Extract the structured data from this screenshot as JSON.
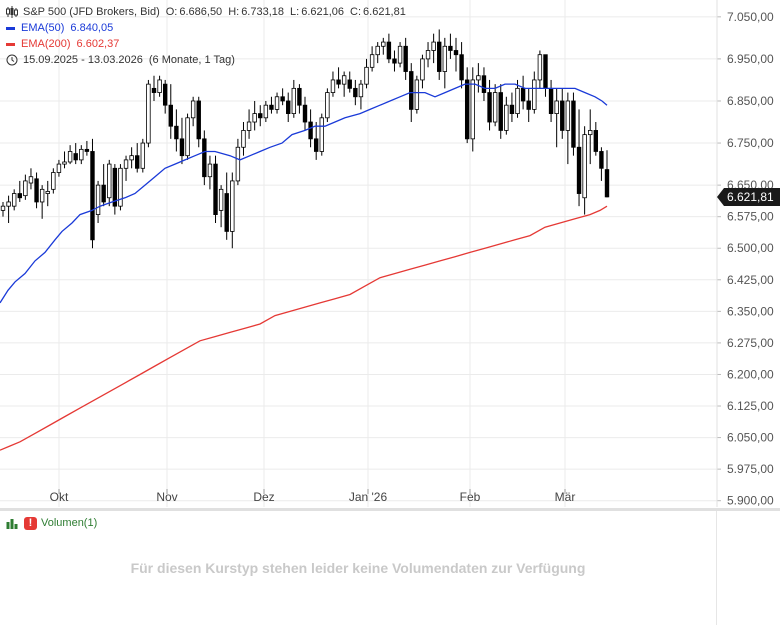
{
  "legend": {
    "instrument": "S&P 500 (JFD Brokers, Bid)",
    "open_label": "O:",
    "open": "6.686,50",
    "high_label": "H:",
    "high": "6.733,18",
    "low_label": "L:",
    "low": "6.621,06",
    "close_label": "C:",
    "close": "6.621,81",
    "ema50_label": "EMA(50)",
    "ema50_value": "6.840,05",
    "ema200_label": "EMA(200)",
    "ema200_value": "6.602,37",
    "range": "15.09.2025 - 13.03.2026",
    "period": "(6 Monate, 1 Tag)"
  },
  "volume": {
    "label": "Volumen(1)",
    "message": "Für diesen Kurstyp stehen leider keine Volumendaten zur Verfügung"
  },
  "colors": {
    "ema50": "#1a3ad8",
    "ema200": "#e53935",
    "candle": "#000000",
    "grid": "#ebebeb",
    "last_price_tag": "#1a1a1a"
  },
  "chart_data": {
    "type": "candlestick",
    "title": "S&P 500 (JFD Brokers, Bid)",
    "x_tick_labels": [
      "Okt",
      "Nov",
      "Dez",
      "Jan '26",
      "Feb",
      "Mär"
    ],
    "y_tick_labels": [
      "7.050,00",
      "6.950,00",
      "6.850,00",
      "6.750,00",
      "6.650,00",
      "6.575,00",
      "6.500,00",
      "6.425,00",
      "6.350,00",
      "6.275,00",
      "6.200,00",
      "6.125,00",
      "6.050,00",
      "5.975,00",
      "5.900,00"
    ],
    "y_ticks": [
      7050,
      6950,
      6850,
      6750,
      6650,
      6575,
      6500,
      6425,
      6350,
      6275,
      6200,
      6125,
      6050,
      5975,
      5900
    ],
    "ylim": [
      5885,
      7090
    ],
    "last_price": 6621.81,
    "last_price_label": "6.621,81",
    "grid": true,
    "candles": [
      {
        "o": 6590,
        "h": 6610,
        "l": 6575,
        "c": 6600
      },
      {
        "o": 6600,
        "h": 6625,
        "l": 6560,
        "c": 6610
      },
      {
        "o": 6600,
        "h": 6640,
        "l": 6590,
        "c": 6630
      },
      {
        "o": 6630,
        "h": 6660,
        "l": 6610,
        "c": 6620
      },
      {
        "o": 6625,
        "h": 6675,
        "l": 6615,
        "c": 6660
      },
      {
        "o": 6655,
        "h": 6690,
        "l": 6640,
        "c": 6670
      },
      {
        "o": 6665,
        "h": 6680,
        "l": 6595,
        "c": 6610
      },
      {
        "o": 6610,
        "h": 6650,
        "l": 6570,
        "c": 6640
      },
      {
        "o": 6630,
        "h": 6660,
        "l": 6600,
        "c": 6635
      },
      {
        "o": 6640,
        "h": 6690,
        "l": 6630,
        "c": 6680
      },
      {
        "o": 6680,
        "h": 6710,
        "l": 6670,
        "c": 6700
      },
      {
        "o": 6700,
        "h": 6730,
        "l": 6690,
        "c": 6705
      },
      {
        "o": 6705,
        "h": 6745,
        "l": 6700,
        "c": 6730
      },
      {
        "o": 6725,
        "h": 6750,
        "l": 6700,
        "c": 6710
      },
      {
        "o": 6710,
        "h": 6745,
        "l": 6700,
        "c": 6735
      },
      {
        "o": 6735,
        "h": 6755,
        "l": 6720,
        "c": 6730
      },
      {
        "o": 6730,
        "h": 6760,
        "l": 6500,
        "c": 6520
      },
      {
        "o": 6580,
        "h": 6660,
        "l": 6560,
        "c": 6650
      },
      {
        "o": 6650,
        "h": 6700,
        "l": 6600,
        "c": 6610
      },
      {
        "o": 6620,
        "h": 6710,
        "l": 6600,
        "c": 6700
      },
      {
        "o": 6690,
        "h": 6700,
        "l": 6580,
        "c": 6600
      },
      {
        "o": 6600,
        "h": 6700,
        "l": 6590,
        "c": 6690
      },
      {
        "o": 6690,
        "h": 6720,
        "l": 6660,
        "c": 6710
      },
      {
        "o": 6710,
        "h": 6740,
        "l": 6690,
        "c": 6720
      },
      {
        "o": 6720,
        "h": 6750,
        "l": 6680,
        "c": 6690
      },
      {
        "o": 6690,
        "h": 6760,
        "l": 6680,
        "c": 6750
      },
      {
        "o": 6750,
        "h": 6900,
        "l": 6740,
        "c": 6890
      },
      {
        "o": 6880,
        "h": 6910,
        "l": 6850,
        "c": 6870
      },
      {
        "o": 6870,
        "h": 6910,
        "l": 6860,
        "c": 6900
      },
      {
        "o": 6890,
        "h": 6900,
        "l": 6820,
        "c": 6840
      },
      {
        "o": 6840,
        "h": 6890,
        "l": 6760,
        "c": 6790
      },
      {
        "o": 6790,
        "h": 6830,
        "l": 6730,
        "c": 6760
      },
      {
        "o": 6760,
        "h": 6810,
        "l": 6700,
        "c": 6720
      },
      {
        "o": 6720,
        "h": 6820,
        "l": 6710,
        "c": 6810
      },
      {
        "o": 6810,
        "h": 6860,
        "l": 6790,
        "c": 6850
      },
      {
        "o": 6850,
        "h": 6860,
        "l": 6740,
        "c": 6760
      },
      {
        "o": 6760,
        "h": 6780,
        "l": 6650,
        "c": 6670
      },
      {
        "o": 6670,
        "h": 6720,
        "l": 6640,
        "c": 6700
      },
      {
        "o": 6700,
        "h": 6720,
        "l": 6560,
        "c": 6580
      },
      {
        "o": 6590,
        "h": 6650,
        "l": 6550,
        "c": 6640
      },
      {
        "o": 6630,
        "h": 6680,
        "l": 6520,
        "c": 6540
      },
      {
        "o": 6540,
        "h": 6680,
        "l": 6500,
        "c": 6660
      },
      {
        "o": 6660,
        "h": 6760,
        "l": 6650,
        "c": 6740
      },
      {
        "o": 6740,
        "h": 6800,
        "l": 6720,
        "c": 6780
      },
      {
        "o": 6780,
        "h": 6830,
        "l": 6760,
        "c": 6800
      },
      {
        "o": 6800,
        "h": 6850,
        "l": 6780,
        "c": 6820
      },
      {
        "o": 6820,
        "h": 6840,
        "l": 6790,
        "c": 6810
      },
      {
        "o": 6810,
        "h": 6850,
        "l": 6800,
        "c": 6840
      },
      {
        "o": 6840,
        "h": 6860,
        "l": 6820,
        "c": 6830
      },
      {
        "o": 6830,
        "h": 6870,
        "l": 6820,
        "c": 6860
      },
      {
        "o": 6860,
        "h": 6880,
        "l": 6840,
        "c": 6850
      },
      {
        "o": 6850,
        "h": 6870,
        "l": 6800,
        "c": 6820
      },
      {
        "o": 6820,
        "h": 6900,
        "l": 6810,
        "c": 6880
      },
      {
        "o": 6880,
        "h": 6890,
        "l": 6820,
        "c": 6840
      },
      {
        "o": 6840,
        "h": 6860,
        "l": 6780,
        "c": 6800
      },
      {
        "o": 6800,
        "h": 6830,
        "l": 6740,
        "c": 6760
      },
      {
        "o": 6760,
        "h": 6800,
        "l": 6710,
        "c": 6730
      },
      {
        "o": 6730,
        "h": 6820,
        "l": 6720,
        "c": 6810
      },
      {
        "o": 6810,
        "h": 6880,
        "l": 6800,
        "c": 6870
      },
      {
        "o": 6870,
        "h": 6920,
        "l": 6860,
        "c": 6900
      },
      {
        "o": 6900,
        "h": 6930,
        "l": 6880,
        "c": 6890
      },
      {
        "o": 6890,
        "h": 6920,
        "l": 6860,
        "c": 6910
      },
      {
        "o": 6900,
        "h": 6920,
        "l": 6870,
        "c": 6880
      },
      {
        "o": 6880,
        "h": 6900,
        "l": 6840,
        "c": 6860
      },
      {
        "o": 6860,
        "h": 6900,
        "l": 6830,
        "c": 6890
      },
      {
        "o": 6890,
        "h": 6950,
        "l": 6880,
        "c": 6930
      },
      {
        "o": 6930,
        "h": 6980,
        "l": 6920,
        "c": 6960
      },
      {
        "o": 6960,
        "h": 6990,
        "l": 6940,
        "c": 6980
      },
      {
        "o": 6980,
        "h": 7000,
        "l": 6960,
        "c": 6990
      },
      {
        "o": 6990,
        "h": 7010,
        "l": 6940,
        "c": 6950
      },
      {
        "o": 6950,
        "h": 6970,
        "l": 6920,
        "c": 6940
      },
      {
        "o": 6940,
        "h": 6990,
        "l": 6930,
        "c": 6980
      },
      {
        "o": 6980,
        "h": 7000,
        "l": 6900,
        "c": 6920
      },
      {
        "o": 6920,
        "h": 6940,
        "l": 6800,
        "c": 6830
      },
      {
        "o": 6830,
        "h": 6910,
        "l": 6820,
        "c": 6900
      },
      {
        "o": 6900,
        "h": 6960,
        "l": 6880,
        "c": 6950
      },
      {
        "o": 6950,
        "h": 6990,
        "l": 6930,
        "c": 6970
      },
      {
        "o": 6970,
        "h": 7010,
        "l": 6940,
        "c": 6990
      },
      {
        "o": 6990,
        "h": 7020,
        "l": 6900,
        "c": 6920
      },
      {
        "o": 6920,
        "h": 7000,
        "l": 6880,
        "c": 6980
      },
      {
        "o": 6980,
        "h": 7010,
        "l": 6950,
        "c": 6970
      },
      {
        "o": 6970,
        "h": 7000,
        "l": 6920,
        "c": 6960
      },
      {
        "o": 6960,
        "h": 6990,
        "l": 6880,
        "c": 6900
      },
      {
        "o": 6900,
        "h": 6930,
        "l": 6750,
        "c": 6760
      },
      {
        "o": 6760,
        "h": 6930,
        "l": 6730,
        "c": 6900
      },
      {
        "o": 6900,
        "h": 6940,
        "l": 6870,
        "c": 6910
      },
      {
        "o": 6910,
        "h": 6930,
        "l": 6850,
        "c": 6870
      },
      {
        "o": 6870,
        "h": 6900,
        "l": 6780,
        "c": 6800
      },
      {
        "o": 6800,
        "h": 6890,
        "l": 6790,
        "c": 6870
      },
      {
        "o": 6870,
        "h": 6890,
        "l": 6760,
        "c": 6780
      },
      {
        "o": 6780,
        "h": 6860,
        "l": 6770,
        "c": 6840
      },
      {
        "o": 6840,
        "h": 6870,
        "l": 6800,
        "c": 6820
      },
      {
        "o": 6820,
        "h": 6900,
        "l": 6810,
        "c": 6880
      },
      {
        "o": 6880,
        "h": 6910,
        "l": 6830,
        "c": 6850
      },
      {
        "o": 6850,
        "h": 6880,
        "l": 6800,
        "c": 6830
      },
      {
        "o": 6830,
        "h": 6920,
        "l": 6820,
        "c": 6900
      },
      {
        "o": 6900,
        "h": 6970,
        "l": 6880,
        "c": 6960
      },
      {
        "o": 6960,
        "h": 6960,
        "l": 6860,
        "c": 6880
      },
      {
        "o": 6880,
        "h": 6900,
        "l": 6800,
        "c": 6820
      },
      {
        "o": 6820,
        "h": 6880,
        "l": 6740,
        "c": 6850
      },
      {
        "o": 6850,
        "h": 6880,
        "l": 6760,
        "c": 6780
      },
      {
        "o": 6780,
        "h": 6870,
        "l": 6700,
        "c": 6850
      },
      {
        "o": 6850,
        "h": 6870,
        "l": 6720,
        "c": 6740
      },
      {
        "o": 6740,
        "h": 6830,
        "l": 6600,
        "c": 6630
      },
      {
        "o": 6620,
        "h": 6790,
        "l": 6580,
        "c": 6770
      },
      {
        "o": 6770,
        "h": 6830,
        "l": 6700,
        "c": 6780
      },
      {
        "o": 6780,
        "h": 6800,
        "l": 6720,
        "c": 6730
      },
      {
        "o": 6730,
        "h": 6740,
        "l": 6660,
        "c": 6690
      },
      {
        "o": 6687,
        "h": 6733,
        "l": 6621,
        "c": 6622
      }
    ],
    "ema50": [
      [
        0,
        6370
      ],
      [
        8,
        6400
      ],
      [
        15,
        6420
      ],
      [
        25,
        6440
      ],
      [
        35,
        6470
      ],
      [
        45,
        6490
      ],
      [
        55,
        6520
      ],
      [
        62,
        6540
      ],
      [
        72,
        6560
      ],
      [
        80,
        6580
      ],
      [
        92,
        6590
      ],
      [
        100,
        6600
      ],
      [
        112,
        6610
      ],
      [
        125,
        6620
      ],
      [
        135,
        6630
      ],
      [
        145,
        6650
      ],
      [
        155,
        6670
      ],
      [
        165,
        6690
      ],
      [
        175,
        6700
      ],
      [
        185,
        6710
      ],
      [
        195,
        6720
      ],
      [
        205,
        6730
      ],
      [
        215,
        6730
      ],
      [
        230,
        6720
      ],
      [
        240,
        6710
      ],
      [
        250,
        6720
      ],
      [
        260,
        6730
      ],
      [
        270,
        6740
      ],
      [
        282,
        6750
      ],
      [
        292,
        6770
      ],
      [
        305,
        6780
      ],
      [
        315,
        6790
      ],
      [
        325,
        6790
      ],
      [
        335,
        6800
      ],
      [
        345,
        6810
      ],
      [
        360,
        6820
      ],
      [
        370,
        6830
      ],
      [
        380,
        6840
      ],
      [
        390,
        6850
      ],
      [
        400,
        6860
      ],
      [
        410,
        6870
      ],
      [
        425,
        6870
      ],
      [
        435,
        6860
      ],
      [
        445,
        6870
      ],
      [
        455,
        6880
      ],
      [
        465,
        6890
      ],
      [
        475,
        6890
      ],
      [
        485,
        6880
      ],
      [
        495,
        6880
      ],
      [
        505,
        6890
      ],
      [
        515,
        6890
      ],
      [
        525,
        6880
      ],
      [
        535,
        6880
      ],
      [
        545,
        6880
      ],
      [
        555,
        6880
      ],
      [
        565,
        6880
      ],
      [
        575,
        6880
      ],
      [
        585,
        6870
      ],
      [
        595,
        6860
      ],
      [
        602,
        6850
      ],
      [
        607,
        6840
      ]
    ],
    "ema200": [
      [
        0,
        6020
      ],
      [
        10,
        6030
      ],
      [
        20,
        6040
      ],
      [
        35,
        6060
      ],
      [
        50,
        6080
      ],
      [
        65,
        6100
      ],
      [
        80,
        6120
      ],
      [
        95,
        6140
      ],
      [
        110,
        6160
      ],
      [
        125,
        6180
      ],
      [
        140,
        6200
      ],
      [
        155,
        6220
      ],
      [
        170,
        6240
      ],
      [
        185,
        6260
      ],
      [
        200,
        6280
      ],
      [
        215,
        6290
      ],
      [
        230,
        6300
      ],
      [
        245,
        6310
      ],
      [
        260,
        6320
      ],
      [
        275,
        6340
      ],
      [
        290,
        6350
      ],
      [
        305,
        6360
      ],
      [
        320,
        6370
      ],
      [
        335,
        6380
      ],
      [
        350,
        6390
      ],
      [
        365,
        6410
      ],
      [
        380,
        6430
      ],
      [
        395,
        6440
      ],
      [
        410,
        6450
      ],
      [
        425,
        6460
      ],
      [
        440,
        6470
      ],
      [
        455,
        6480
      ],
      [
        470,
        6490
      ],
      [
        485,
        6500
      ],
      [
        500,
        6510
      ],
      [
        515,
        6520
      ],
      [
        530,
        6530
      ],
      [
        545,
        6550
      ],
      [
        560,
        6560
      ],
      [
        575,
        6570
      ],
      [
        590,
        6580
      ],
      [
        600,
        6590
      ],
      [
        607,
        6600
      ]
    ]
  }
}
